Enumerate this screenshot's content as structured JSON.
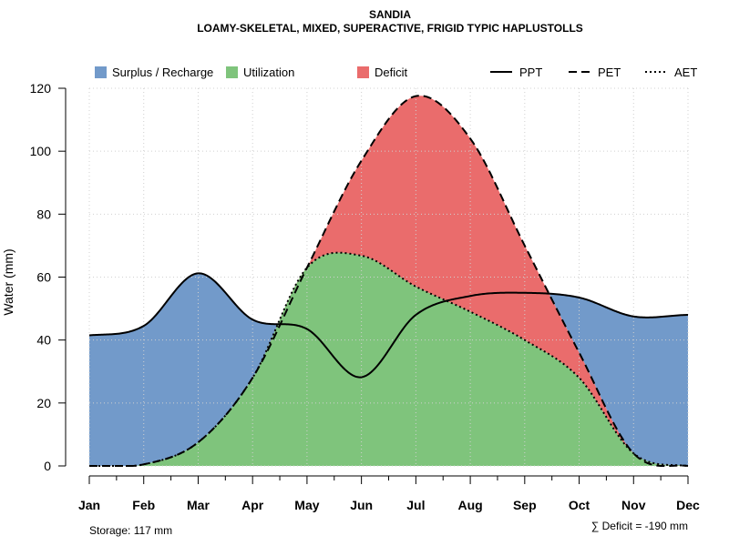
{
  "chart_data": {
    "type": "area",
    "title": "SANDIA",
    "subtitle": "LOAMY-SKELETAL, MIXED, SUPERACTIVE, FRIGID TYPIC HAPLUSTOLLS",
    "ylabel": "Water (mm)",
    "xlabel": "",
    "ylim": [
      0,
      120
    ],
    "yticks": [
      0,
      20,
      40,
      60,
      80,
      100,
      120
    ],
    "categories": [
      "Jan",
      "Feb",
      "Mar",
      "Apr",
      "May",
      "Jun",
      "Jul",
      "Aug",
      "Sep",
      "Oct",
      "Nov",
      "Dec"
    ],
    "series": [
      {
        "name": "PPT",
        "line": "solid",
        "values": [
          41.5,
          44.5,
          61.2,
          46.5,
          43.5,
          28.2,
          48.0,
          54.0,
          55.0,
          53.5,
          47.5,
          48.0
        ]
      },
      {
        "name": "PET",
        "line": "dashed",
        "values": [
          0,
          0.5,
          7.5,
          28.0,
          63.0,
          97.0,
          117.5,
          104.0,
          70.0,
          36.0,
          4.0,
          0
        ]
      },
      {
        "name": "AET",
        "line": "dotted",
        "values": [
          0,
          0.5,
          7.5,
          28.0,
          63.0,
          66.8,
          57.0,
          49.0,
          40.0,
          28.0,
          4.0,
          0
        ]
      }
    ],
    "legend": [
      {
        "label": "Surplus / Recharge",
        "kind": "fill",
        "color": "#729ACA"
      },
      {
        "label": "Utilization",
        "kind": "fill",
        "color": "#7FC47C"
      },
      {
        "label": "Deficit",
        "kind": "fill",
        "color": "#EA6C6C"
      },
      {
        "label": "PPT",
        "kind": "line",
        "style": "solid"
      },
      {
        "label": "PET",
        "kind": "line",
        "style": "dashed"
      },
      {
        "label": "AET",
        "kind": "line",
        "style": "dotted"
      }
    ],
    "colors": {
      "surplus": "#729ACA",
      "utilization": "#7FC47C",
      "deficit": "#EA6C6C",
      "grid": "#D0D0D0"
    },
    "grid": true,
    "legend_position": "top"
  },
  "footer": {
    "storage": "Storage: 117 mm",
    "deficit": "∑ Deficit = -190 mm"
  }
}
